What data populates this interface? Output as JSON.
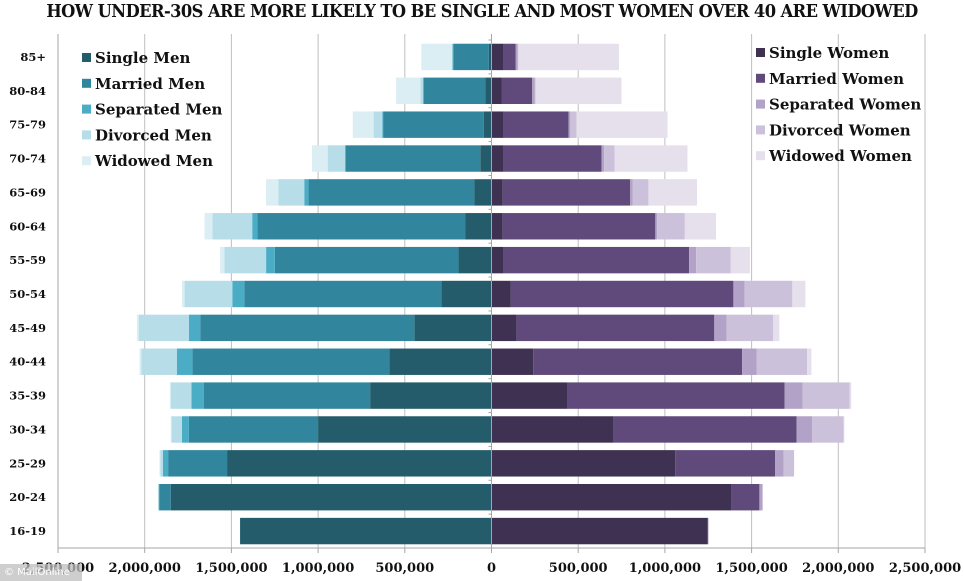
{
  "chart_data": {
    "type": "bar",
    "orientation": "horizontal",
    "stacked": true,
    "layout": "population-pyramid",
    "title": "HOW UNDER-30S ARE MORE LIKELY TO BE SINGLE AND MOST WOMEN OVER 40 ARE WIDOWED",
    "xlabel": "",
    "ylabel": "",
    "xlim": [
      -2500000,
      2500000
    ],
    "x_ticks": [
      -2500000,
      -2000000,
      -1500000,
      -1000000,
      -500000,
      0,
      500000,
      1000000,
      1500000,
      2000000,
      2500000
    ],
    "x_tick_labels": [
      "2,500,000",
      "2,000,000",
      "1,500,000",
      "1,000,000",
      "500,000",
      "0",
      "500,000",
      "1,000,000",
      "1,500,000",
      "2,000,000",
      "2,500,000"
    ],
    "grid": "vertical",
    "categories": [
      "85+",
      "80-84",
      "75-79",
      "70-74",
      "65-69",
      "60-64",
      "55-59",
      "50-54",
      "45-49",
      "40-44",
      "35-39",
      "30-34",
      "25-29",
      "20-24",
      "16-19"
    ],
    "legend_left_placement": "top-left",
    "legend_right_placement": "top-right",
    "series": [
      {
        "name": "Single Men",
        "side": "left",
        "color": "#245c6b",
        "values": [
          15000,
          35000,
          45000,
          65000,
          100000,
          150000,
          190000,
          290000,
          445000,
          590000,
          700000,
          1000000,
          1525000,
          1850000,
          1450000
        ]
      },
      {
        "name": "Married Men",
        "side": "left",
        "color": "#31859c",
        "values": [
          205000,
          355000,
          580000,
          775000,
          955000,
          1200000,
          1060000,
          1135000,
          1235000,
          1135000,
          960000,
          745000,
          340000,
          65000,
          0
        ]
      },
      {
        "name": "Separated Men",
        "side": "left",
        "color": "#4bacc6",
        "values": [
          5000,
          5000,
          5000,
          5000,
          25000,
          30000,
          50000,
          70000,
          65000,
          90000,
          70000,
          40000,
          30000,
          5000,
          0
        ]
      },
      {
        "name": "Divorced Men",
        "side": "left",
        "color": "#b7dde8",
        "values": [
          0,
          15000,
          50000,
          100000,
          150000,
          230000,
          240000,
          275000,
          290000,
          205000,
          120000,
          60000,
          15000,
          0,
          0
        ]
      },
      {
        "name": "Widowed Men",
        "side": "left",
        "color": "#dbeef4",
        "values": [
          180000,
          140000,
          120000,
          90000,
          70000,
          45000,
          25000,
          15000,
          10000,
          10000,
          5000,
          5000,
          5000,
          0,
          0
        ]
      },
      {
        "name": "Single Women",
        "side": "right",
        "color": "#3f3151",
        "values": [
          70000,
          60000,
          70000,
          70000,
          65000,
          65000,
          70000,
          110000,
          145000,
          240000,
          440000,
          705000,
          1060000,
          1385000,
          1245000
        ]
      },
      {
        "name": "Married Women",
        "side": "right",
        "color": "#604a7b",
        "values": [
          70000,
          175000,
          375000,
          565000,
          735000,
          880000,
          1070000,
          1285000,
          1140000,
          1205000,
          1250000,
          1055000,
          575000,
          160000,
          5000
        ]
      },
      {
        "name": "Separated Women",
        "side": "right",
        "color": "#b2a2c7",
        "values": [
          10000,
          15000,
          10000,
          15000,
          15000,
          10000,
          40000,
          65000,
          70000,
          85000,
          105000,
          90000,
          50000,
          15000,
          0
        ]
      },
      {
        "name": "Divorced Women",
        "side": "right",
        "color": "#ccc1da",
        "values": [
          5000,
          5000,
          35000,
          60000,
          90000,
          160000,
          200000,
          275000,
          270000,
          290000,
          270000,
          180000,
          60000,
          5000,
          0
        ]
      },
      {
        "name": "Widowed Women",
        "side": "right",
        "color": "#e5e0ec",
        "values": [
          580000,
          495000,
          525000,
          420000,
          280000,
          180000,
          110000,
          75000,
          35000,
          25000,
          10000,
          5000,
          0,
          0,
          0
        ]
      }
    ]
  },
  "watermark": "© MailOnline"
}
